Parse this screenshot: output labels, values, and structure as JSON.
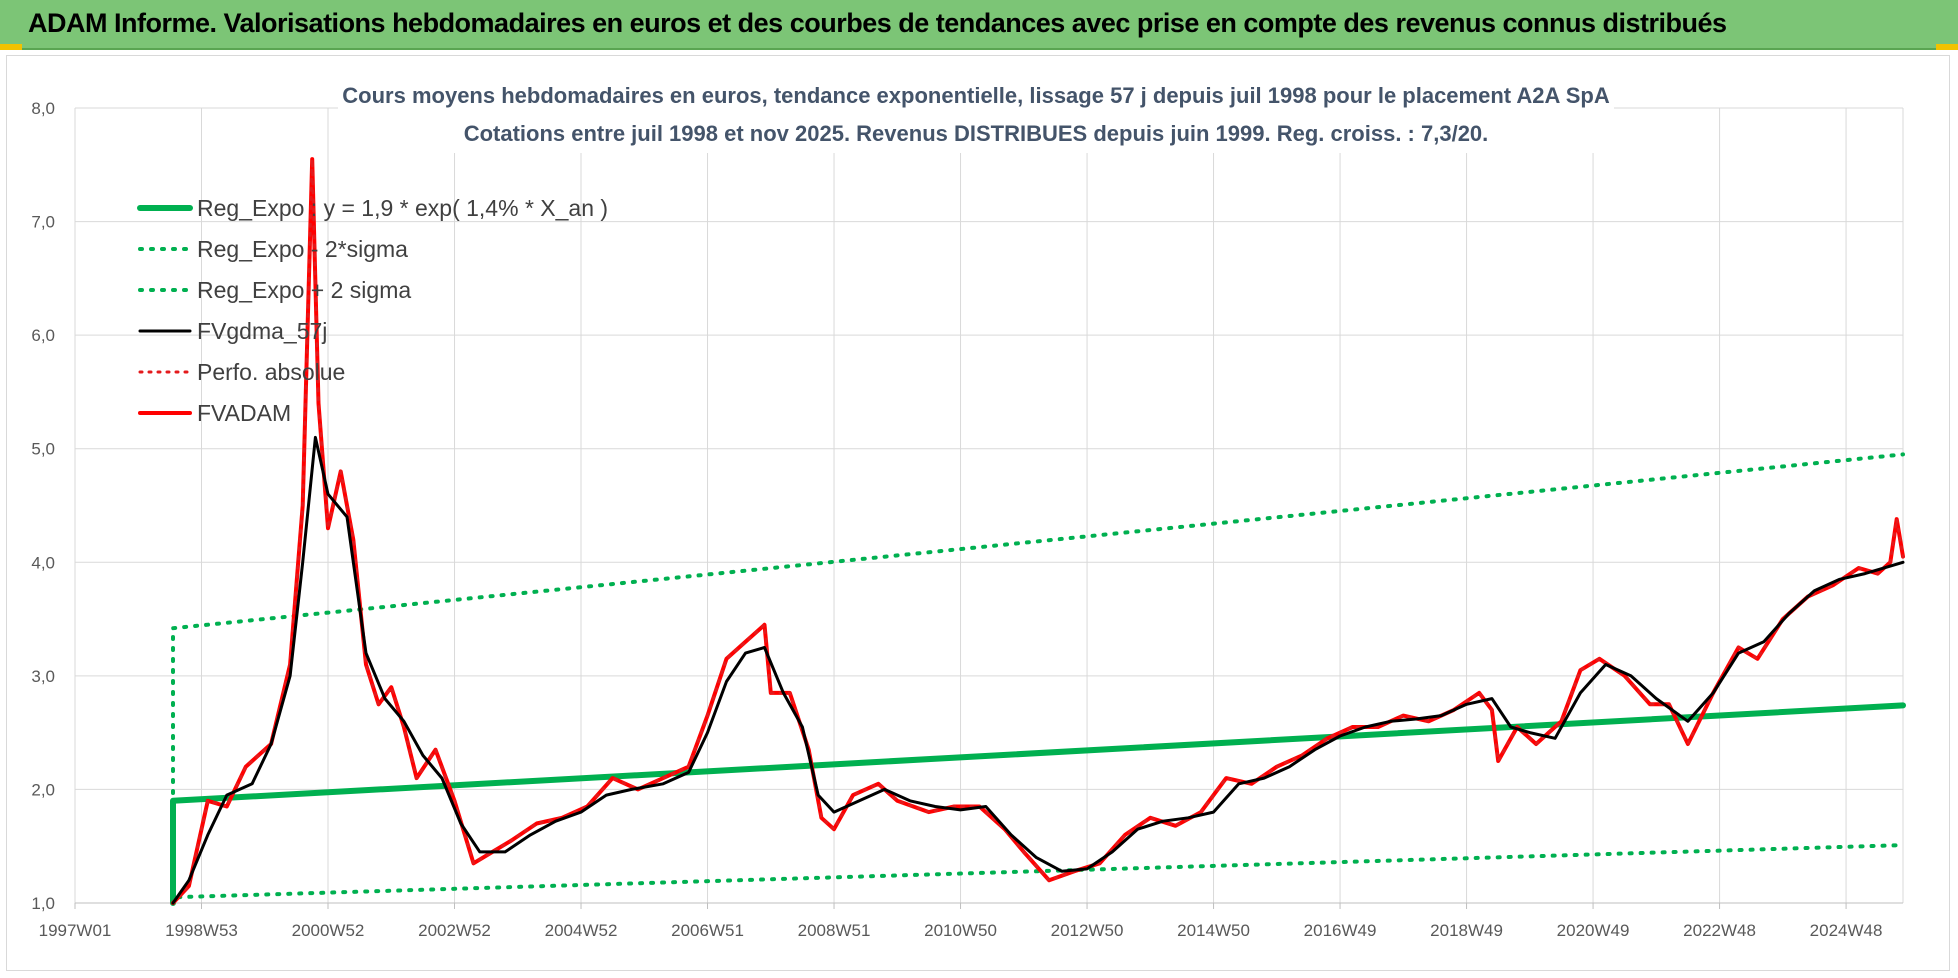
{
  "header": {
    "title": "ADAM Informe. Valorisations hebdomadaires en euros et des courbes de tendances avec prise en compte des revenus connus distribués"
  },
  "colors": {
    "banner": "#7cc576",
    "reg": "#00b050",
    "fvgdma": "#000000",
    "perfo": "#e41a1c",
    "fvadam": "#ff0000"
  },
  "chart_data": {
    "type": "line",
    "title_lines": [
      "Cours moyens hebdomadaires en euros, tendance exponentielle, lissage 57 j depuis juil 1998 pour le placement A2A SpA",
      "Cotations entre juil 1998 et nov 2025. Revenus DISTRIBUES depuis juin 1999.  Reg. croiss. : 7,3/20."
    ],
    "xlabel": "",
    "ylabel": "",
    "xlim": [
      1997.0,
      2025.9
    ],
    "ylim": [
      1.0,
      8.0
    ],
    "x_ticks": [
      {
        "label": "1997W01",
        "x": 1997.0
      },
      {
        "label": "1998W53",
        "x": 1999.0
      },
      {
        "label": "2000W52",
        "x": 2001.0
      },
      {
        "label": "2002W52",
        "x": 2003.0
      },
      {
        "label": "2004W52",
        "x": 2005.0
      },
      {
        "label": "2006W51",
        "x": 2007.0
      },
      {
        "label": "2008W51",
        "x": 2009.0
      },
      {
        "label": "2010W50",
        "x": 2011.0
      },
      {
        "label": "2012W50",
        "x": 2013.0
      },
      {
        "label": "2014W50",
        "x": 2015.0
      },
      {
        "label": "2016W49",
        "x": 2017.0
      },
      {
        "label": "2018W49",
        "x": 2019.0
      },
      {
        "label": "2020W49",
        "x": 2021.0
      },
      {
        "label": "2022W48",
        "x": 2023.0
      },
      {
        "label": "2024W48",
        "x": 2025.0
      }
    ],
    "y_ticks": [
      "1,0",
      "2,0",
      "3,0",
      "4,0",
      "5,0",
      "6,0",
      "7,0",
      "8,0"
    ],
    "grid": true,
    "legend_position": "top-left",
    "series": [
      {
        "name": "Reg_Expo : y = 1,9 * exp( 1,4% *  X_an )",
        "style": "solid-thick",
        "points": [
          [
            1998.55,
            1.0
          ],
          [
            1998.55,
            1.9
          ],
          [
            2025.9,
            2.74
          ]
        ]
      },
      {
        "name": "Reg_Expo - 2*sigma",
        "style": "dotted",
        "points": [
          [
            1998.55,
            1.0
          ],
          [
            1998.55,
            1.05
          ],
          [
            2025.9,
            1.51
          ]
        ]
      },
      {
        "name": "Reg_Expo + 2 sigma",
        "style": "dotted",
        "points": [
          [
            1998.55,
            1.0
          ],
          [
            1998.55,
            3.42
          ],
          [
            2025.9,
            4.95
          ]
        ]
      },
      {
        "name": "FVgdma_57j",
        "style": "solid",
        "points": [
          [
            1998.55,
            1.0
          ],
          [
            1998.8,
            1.2
          ],
          [
            1999.1,
            1.6
          ],
          [
            1999.4,
            1.95
          ],
          [
            1999.8,
            2.05
          ],
          [
            2000.1,
            2.4
          ],
          [
            2000.4,
            3.0
          ],
          [
            2000.6,
            4.0
          ],
          [
            2000.8,
            5.1
          ],
          [
            2001.0,
            4.6
          ],
          [
            2001.3,
            4.4
          ],
          [
            2001.6,
            3.2
          ],
          [
            2001.9,
            2.8
          ],
          [
            2002.2,
            2.6
          ],
          [
            2002.5,
            2.3
          ],
          [
            2002.8,
            2.1
          ],
          [
            2003.1,
            1.7
          ],
          [
            2003.4,
            1.45
          ],
          [
            2003.8,
            1.45
          ],
          [
            2004.2,
            1.6
          ],
          [
            2004.6,
            1.72
          ],
          [
            2005.0,
            1.8
          ],
          [
            2005.4,
            1.95
          ],
          [
            2005.8,
            2.0
          ],
          [
            2006.3,
            2.05
          ],
          [
            2006.7,
            2.15
          ],
          [
            2007.0,
            2.5
          ],
          [
            2007.3,
            2.95
          ],
          [
            2007.6,
            3.2
          ],
          [
            2007.9,
            3.25
          ],
          [
            2008.2,
            2.85
          ],
          [
            2008.5,
            2.55
          ],
          [
            2008.75,
            1.95
          ],
          [
            2009.0,
            1.8
          ],
          [
            2009.4,
            1.9
          ],
          [
            2009.8,
            2.0
          ],
          [
            2010.2,
            1.9
          ],
          [
            2010.6,
            1.85
          ],
          [
            2011.0,
            1.82
          ],
          [
            2011.4,
            1.85
          ],
          [
            2011.8,
            1.6
          ],
          [
            2012.2,
            1.4
          ],
          [
            2012.6,
            1.28
          ],
          [
            2013.0,
            1.3
          ],
          [
            2013.4,
            1.45
          ],
          [
            2013.8,
            1.65
          ],
          [
            2014.2,
            1.72
          ],
          [
            2014.6,
            1.75
          ],
          [
            2015.0,
            1.8
          ],
          [
            2015.4,
            2.05
          ],
          [
            2015.8,
            2.1
          ],
          [
            2016.2,
            2.2
          ],
          [
            2016.6,
            2.35
          ],
          [
            2017.0,
            2.47
          ],
          [
            2017.4,
            2.55
          ],
          [
            2017.8,
            2.6
          ],
          [
            2018.2,
            2.62
          ],
          [
            2018.6,
            2.65
          ],
          [
            2019.0,
            2.75
          ],
          [
            2019.4,
            2.8
          ],
          [
            2019.7,
            2.55
          ],
          [
            2020.0,
            2.5
          ],
          [
            2020.4,
            2.45
          ],
          [
            2020.8,
            2.85
          ],
          [
            2021.2,
            3.1
          ],
          [
            2021.6,
            3.0
          ],
          [
            2022.0,
            2.8
          ],
          [
            2022.5,
            2.6
          ],
          [
            2022.9,
            2.85
          ],
          [
            2023.3,
            3.2
          ],
          [
            2023.7,
            3.3
          ],
          [
            2024.1,
            3.55
          ],
          [
            2024.5,
            3.75
          ],
          [
            2024.9,
            3.85
          ],
          [
            2025.3,
            3.9
          ],
          [
            2025.9,
            4.0
          ]
        ]
      },
      {
        "name": "Perfo. absolue",
        "style": "dotted",
        "points": [
          [
            1998.55,
            1.0
          ],
          [
            1998.8,
            1.15
          ],
          [
            1999.1,
            1.9
          ],
          [
            1999.4,
            1.85
          ],
          [
            1999.7,
            2.2
          ],
          [
            2000.1,
            2.4
          ],
          [
            2000.4,
            3.1
          ],
          [
            2000.6,
            4.5
          ],
          [
            2000.75,
            7.55
          ],
          [
            2000.85,
            5.4
          ],
          [
            2001.0,
            4.3
          ],
          [
            2001.2,
            4.8
          ],
          [
            2001.4,
            4.2
          ],
          [
            2001.6,
            3.1
          ],
          [
            2001.8,
            2.75
          ],
          [
            2002.0,
            2.9
          ],
          [
            2002.2,
            2.55
          ],
          [
            2002.4,
            2.1
          ],
          [
            2002.7,
            2.35
          ],
          [
            2003.0,
            1.9
          ],
          [
            2003.3,
            1.35
          ],
          [
            2003.6,
            1.45
          ],
          [
            2003.9,
            1.55
          ],
          [
            2004.3,
            1.7
          ],
          [
            2004.7,
            1.75
          ],
          [
            2005.1,
            1.85
          ],
          [
            2005.5,
            2.1
          ],
          [
            2005.9,
            2.0
          ],
          [
            2006.3,
            2.1
          ],
          [
            2006.7,
            2.2
          ],
          [
            2007.0,
            2.65
          ],
          [
            2007.3,
            3.15
          ],
          [
            2007.6,
            3.3
          ],
          [
            2007.9,
            3.45
          ],
          [
            2008.0,
            2.85
          ],
          [
            2008.3,
            2.85
          ],
          [
            2008.6,
            2.35
          ],
          [
            2008.8,
            1.75
          ],
          [
            2009.0,
            1.65
          ],
          [
            2009.3,
            1.95
          ],
          [
            2009.7,
            2.05
          ],
          [
            2010.0,
            1.9
          ],
          [
            2010.5,
            1.8
          ],
          [
            2010.9,
            1.85
          ],
          [
            2011.3,
            1.85
          ],
          [
            2011.7,
            1.65
          ],
          [
            2012.0,
            1.45
          ],
          [
            2012.4,
            1.2
          ],
          [
            2012.8,
            1.28
          ],
          [
            2013.2,
            1.35
          ],
          [
            2013.6,
            1.6
          ],
          [
            2014.0,
            1.75
          ],
          [
            2014.4,
            1.68
          ],
          [
            2014.8,
            1.8
          ],
          [
            2015.2,
            2.1
          ],
          [
            2015.6,
            2.05
          ],
          [
            2016.0,
            2.2
          ],
          [
            2016.4,
            2.3
          ],
          [
            2016.8,
            2.45
          ],
          [
            2017.2,
            2.55
          ],
          [
            2017.6,
            2.55
          ],
          [
            2018.0,
            2.65
          ],
          [
            2018.4,
            2.6
          ],
          [
            2018.8,
            2.7
          ],
          [
            2019.2,
            2.85
          ],
          [
            2019.4,
            2.7
          ],
          [
            2019.5,
            2.25
          ],
          [
            2019.8,
            2.55
          ],
          [
            2020.1,
            2.4
          ],
          [
            2020.5,
            2.6
          ],
          [
            2020.8,
            3.05
          ],
          [
            2021.1,
            3.15
          ],
          [
            2021.5,
            3.0
          ],
          [
            2021.9,
            2.75
          ],
          [
            2022.2,
            2.75
          ],
          [
            2022.5,
            2.4
          ],
          [
            2022.9,
            2.85
          ],
          [
            2023.3,
            3.25
          ],
          [
            2023.6,
            3.15
          ],
          [
            2024.0,
            3.5
          ],
          [
            2024.4,
            3.7
          ],
          [
            2024.8,
            3.8
          ],
          [
            2025.2,
            3.95
          ],
          [
            2025.5,
            3.9
          ],
          [
            2025.7,
            4.0
          ],
          [
            2025.8,
            4.38
          ],
          [
            2025.9,
            4.05
          ]
        ]
      },
      {
        "name": "FVADAM",
        "style": "solid-thick",
        "points": [
          [
            1998.55,
            1.0
          ],
          [
            1998.8,
            1.15
          ],
          [
            1999.1,
            1.9
          ],
          [
            1999.4,
            1.85
          ],
          [
            1999.7,
            2.2
          ],
          [
            2000.1,
            2.4
          ],
          [
            2000.4,
            3.1
          ],
          [
            2000.6,
            4.5
          ],
          [
            2000.75,
            7.55
          ],
          [
            2000.85,
            5.4
          ],
          [
            2001.0,
            4.3
          ],
          [
            2001.2,
            4.8
          ],
          [
            2001.4,
            4.2
          ],
          [
            2001.6,
            3.1
          ],
          [
            2001.8,
            2.75
          ],
          [
            2002.0,
            2.9
          ],
          [
            2002.2,
            2.55
          ],
          [
            2002.4,
            2.1
          ],
          [
            2002.7,
            2.35
          ],
          [
            2003.0,
            1.9
          ],
          [
            2003.3,
            1.35
          ],
          [
            2003.6,
            1.45
          ],
          [
            2003.9,
            1.55
          ],
          [
            2004.3,
            1.7
          ],
          [
            2004.7,
            1.75
          ],
          [
            2005.1,
            1.85
          ],
          [
            2005.5,
            2.1
          ],
          [
            2005.9,
            2.0
          ],
          [
            2006.3,
            2.1
          ],
          [
            2006.7,
            2.2
          ],
          [
            2007.0,
            2.65
          ],
          [
            2007.3,
            3.15
          ],
          [
            2007.6,
            3.3
          ],
          [
            2007.9,
            3.45
          ],
          [
            2008.0,
            2.85
          ],
          [
            2008.3,
            2.85
          ],
          [
            2008.6,
            2.35
          ],
          [
            2008.8,
            1.75
          ],
          [
            2009.0,
            1.65
          ],
          [
            2009.3,
            1.95
          ],
          [
            2009.7,
            2.05
          ],
          [
            2010.0,
            1.9
          ],
          [
            2010.5,
            1.8
          ],
          [
            2010.9,
            1.85
          ],
          [
            2011.3,
            1.85
          ],
          [
            2011.7,
            1.65
          ],
          [
            2012.0,
            1.45
          ],
          [
            2012.4,
            1.2
          ],
          [
            2012.8,
            1.28
          ],
          [
            2013.2,
            1.35
          ],
          [
            2013.6,
            1.6
          ],
          [
            2014.0,
            1.75
          ],
          [
            2014.4,
            1.68
          ],
          [
            2014.8,
            1.8
          ],
          [
            2015.2,
            2.1
          ],
          [
            2015.6,
            2.05
          ],
          [
            2016.0,
            2.2
          ],
          [
            2016.4,
            2.3
          ],
          [
            2016.8,
            2.45
          ],
          [
            2017.2,
            2.55
          ],
          [
            2017.6,
            2.55
          ],
          [
            2018.0,
            2.65
          ],
          [
            2018.4,
            2.6
          ],
          [
            2018.8,
            2.7
          ],
          [
            2019.2,
            2.85
          ],
          [
            2019.4,
            2.7
          ],
          [
            2019.5,
            2.25
          ],
          [
            2019.8,
            2.55
          ],
          [
            2020.1,
            2.4
          ],
          [
            2020.5,
            2.6
          ],
          [
            2020.8,
            3.05
          ],
          [
            2021.1,
            3.15
          ],
          [
            2021.5,
            3.0
          ],
          [
            2021.9,
            2.75
          ],
          [
            2022.2,
            2.75
          ],
          [
            2022.5,
            2.4
          ],
          [
            2022.9,
            2.85
          ],
          [
            2023.3,
            3.25
          ],
          [
            2023.6,
            3.15
          ],
          [
            2024.0,
            3.5
          ],
          [
            2024.4,
            3.7
          ],
          [
            2024.8,
            3.8
          ],
          [
            2025.2,
            3.95
          ],
          [
            2025.5,
            3.9
          ],
          [
            2025.7,
            4.0
          ],
          [
            2025.8,
            4.38
          ],
          [
            2025.9,
            4.05
          ]
        ]
      }
    ]
  }
}
